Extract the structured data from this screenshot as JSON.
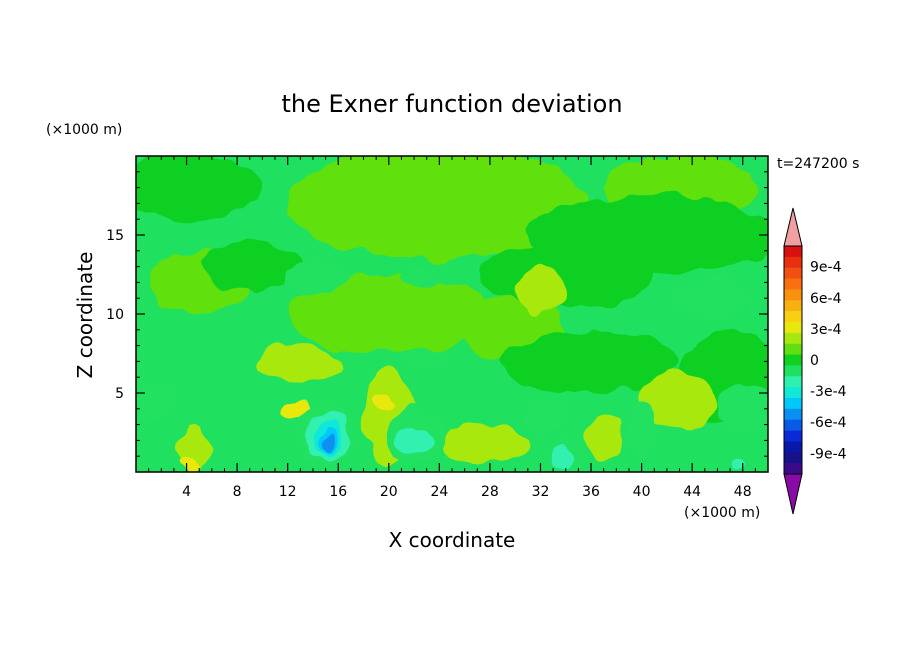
{
  "chart_data": {
    "type": "heatmap",
    "title": "the Exner function deviation",
    "xlabel": "X coordinate",
    "ylabel": "Z coordinate",
    "x_unit": "(×1000 m)",
    "y_unit": "(×1000 m)",
    "time_label": "t=247200 s",
    "xlim": [
      0,
      50
    ],
    "ylim": [
      0,
      20
    ],
    "xticks": [
      "4",
      "8",
      "12",
      "16",
      "20",
      "24",
      "28",
      "32",
      "36",
      "40",
      "44",
      "48"
    ],
    "yticks": [
      "5",
      "10",
      "15"
    ],
    "colorbar": {
      "labels": [
        "9e-4",
        "6e-4",
        "3e-4",
        "0",
        "-3e-4",
        "-6e-4",
        "-9e-4"
      ],
      "levels": [
        -0.0011,
        -0.001,
        -0.0009,
        -0.0008,
        -0.0007,
        -0.0006,
        -0.0005,
        -0.0004,
        -0.0003,
        -0.0002,
        -0.0001,
        0,
        0.0001,
        0.0002,
        0.0003,
        0.0004,
        0.0005,
        0.0006,
        0.0007,
        0.0008,
        0.0009,
        0.001,
        0.0011
      ],
      "colors": [
        "#8a0aa8",
        "#3a0a8a",
        "#18128a",
        "#0a18a8",
        "#0a2ad8",
        "#0a5ae8",
        "#0a90f0",
        "#00c8f8",
        "#10e8d8",
        "#30f0b0",
        "#20e060",
        "#10d020",
        "#60e010",
        "#a8e810",
        "#e8e810",
        "#f8d010",
        "#f8b010",
        "#f89010",
        "#f87010",
        "#f05010",
        "#e83010",
        "#d81010",
        "#f0a0a0"
      ]
    },
    "regions": [
      {
        "value": 5e-05,
        "x": 24,
        "z": 17,
        "rx": 12,
        "rz": 3.5
      },
      {
        "value": 5e-05,
        "x": 43,
        "z": 18,
        "rx": 6,
        "rz": 2
      },
      {
        "value": 5e-05,
        "x": 20,
        "z": 10,
        "rx": 8,
        "rz": 2.5
      },
      {
        "value": 5e-05,
        "x": 30,
        "z": 9,
        "rx": 4,
        "rz": 2
      },
      {
        "value": 5e-05,
        "x": 5,
        "z": 12,
        "rx": 4,
        "rz": 2
      },
      {
        "value": -5e-05,
        "x": 4,
        "z": 18,
        "rx": 6,
        "rz": 2
      },
      {
        "value": -5e-05,
        "x": 41,
        "z": 15,
        "rx": 10,
        "rz": 2.5
      },
      {
        "value": -5e-05,
        "x": 34,
        "z": 12.5,
        "rx": 7,
        "rz": 2
      },
      {
        "value": -5e-05,
        "x": 9,
        "z": 13,
        "rx": 4,
        "rz": 1.5
      },
      {
        "value": -5e-05,
        "x": 36,
        "z": 7,
        "rx": 7,
        "rz": 2
      },
      {
        "value": -5e-05,
        "x": 47,
        "z": 6,
        "rx": 4,
        "rz": 3
      },
      {
        "value": -0.00015,
        "x": 14,
        "z": 12.3,
        "rx": 2.5,
        "rz": 1
      },
      {
        "value": -0.00015,
        "x": 22.5,
        "z": 12.2,
        "rx": 1.5,
        "rz": 0.7
      },
      {
        "value": -0.00015,
        "x": 45.5,
        "z": 11,
        "rx": 3,
        "rz": 1.2
      },
      {
        "value": -0.00015,
        "x": 23,
        "z": 7.3,
        "rx": 2,
        "rz": 0.6
      },
      {
        "value": -0.00015,
        "x": 48.5,
        "z": 4,
        "rx": 2.5,
        "rz": 1.5
      },
      {
        "value": -0.00015,
        "x": 1.5,
        "z": 4.5,
        "rx": 1.8,
        "rz": 1.2
      },
      {
        "value": 0.00015,
        "x": 13,
        "z": 6.8,
        "rx": 3.5,
        "rz": 1.3
      },
      {
        "value": 0.00015,
        "x": 32,
        "z": 11.5,
        "rx": 2,
        "rz": 1.4
      },
      {
        "value": 0.00015,
        "x": 43,
        "z": 4.5,
        "rx": 3,
        "rz": 1.8
      },
      {
        "value": 0.00015,
        "x": 20,
        "z": 3.5,
        "rx": 2,
        "rz": 3
      },
      {
        "value": 0.00015,
        "x": 27.5,
        "z": 1.8,
        "rx": 3.5,
        "rz": 1.2
      },
      {
        "value": 0.00015,
        "x": 4.5,
        "z": 1.5,
        "rx": 1.2,
        "rz": 1.5
      },
      {
        "value": 0.00015,
        "x": 37,
        "z": 2,
        "rx": 1.5,
        "rz": 1.5
      },
      {
        "value": 0.00025,
        "x": 12.8,
        "z": 4,
        "rx": 1.1,
        "rz": 0.5
      },
      {
        "value": 0.00025,
        "x": 19.5,
        "z": 4.5,
        "rx": 0.8,
        "rz": 0.6
      },
      {
        "value": 0.00025,
        "x": 4.2,
        "z": 0.4,
        "rx": 1,
        "rz": 0.4
      },
      {
        "value": -0.00015,
        "x": 15,
        "z": 2.3,
        "rx": 2.3,
        "rz": 2
      },
      {
        "value": -0.00015,
        "x": 22,
        "z": 2.3,
        "rx": 2.2,
        "rz": 1.8
      },
      {
        "value": -0.00015,
        "x": 32.5,
        "z": 3.6,
        "rx": 1.8,
        "rz": 1.2
      },
      {
        "value": -0.00015,
        "x": 40,
        "z": 2.8,
        "rx": 1.2,
        "rz": 1.8
      },
      {
        "value": -0.00015,
        "x": 34,
        "z": 1,
        "rx": 1.5,
        "rz": 1
      },
      {
        "value": -0.00025,
        "x": 15.2,
        "z": 2.2,
        "rx": 1.6,
        "rz": 1.6
      },
      {
        "value": -0.00025,
        "x": 21.8,
        "z": 2,
        "rx": 1.3,
        "rz": 1
      },
      {
        "value": -0.00025,
        "x": 33.8,
        "z": 0.8,
        "rx": 0.8,
        "rz": 0.6
      },
      {
        "value": -0.00025,
        "x": 47.5,
        "z": 0.4,
        "rx": 0.6,
        "rz": 0.4
      },
      {
        "value": -0.00035,
        "x": 15.2,
        "z": 2.1,
        "rx": 1,
        "rz": 1.2
      },
      {
        "value": -0.00045,
        "x": 15.2,
        "z": 2,
        "rx": 0.7,
        "rz": 0.9
      },
      {
        "value": -0.00055,
        "x": 15.2,
        "z": 1.9,
        "rx": 0.45,
        "rz": 0.7
      }
    ]
  }
}
